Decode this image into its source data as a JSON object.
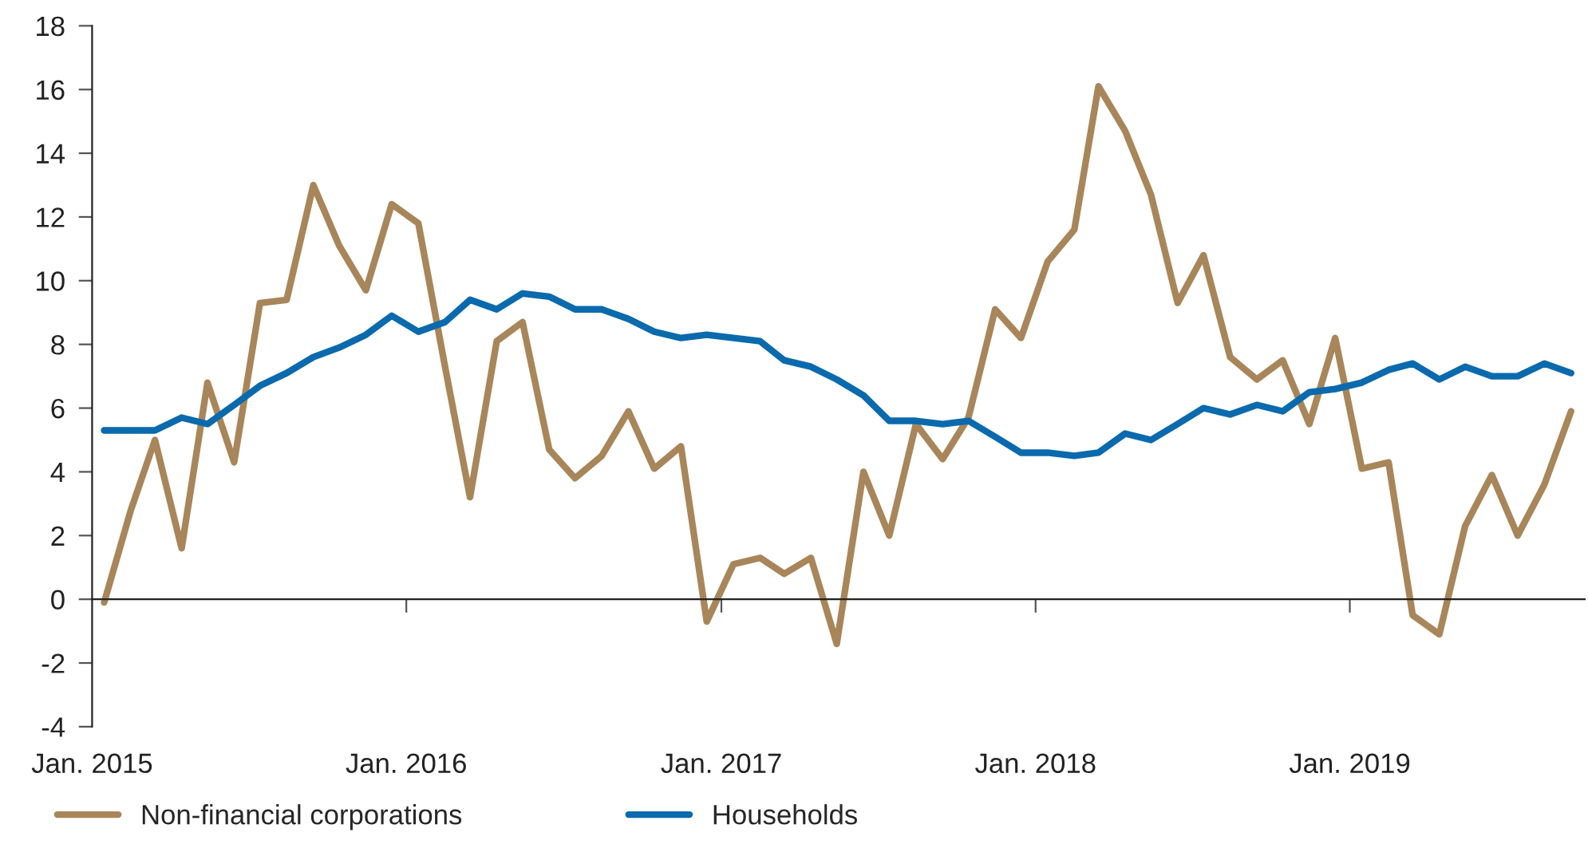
{
  "chart_data": {
    "type": "line",
    "x": [
      "2015-01-15",
      "2015-02-15",
      "2015-03-15",
      "2015-04-15",
      "2015-05-15",
      "2015-06-15",
      "2015-07-15",
      "2015-08-15",
      "2015-09-15",
      "2015-10-15",
      "2015-11-15",
      "2015-12-15",
      "2016-01-15",
      "2016-02-15",
      "2016-03-15",
      "2016-04-15",
      "2016-05-15",
      "2016-06-15",
      "2016-07-15",
      "2016-08-15",
      "2016-09-15",
      "2016-10-15",
      "2016-11-15",
      "2016-12-15",
      "2017-01-15",
      "2017-02-15",
      "2017-03-15",
      "2017-04-15",
      "2017-05-15",
      "2017-06-15",
      "2017-07-15",
      "2017-08-15",
      "2017-09-15",
      "2017-10-15",
      "2017-11-15",
      "2017-12-15",
      "2018-01-15",
      "2018-02-15",
      "2018-03-15",
      "2018-04-15",
      "2018-05-15",
      "2018-06-15",
      "2018-07-15",
      "2018-08-15",
      "2018-09-15",
      "2018-10-15",
      "2018-11-15",
      "2018-12-15",
      "2019-01-15",
      "2019-02-15",
      "2019-03-15",
      "2019-04-15",
      "2019-05-15",
      "2019-06-15",
      "2019-07-15",
      "2019-08-15",
      "2019-09-15"
    ],
    "series": [
      {
        "name": "Non-financial corporations",
        "color": "#a8865a",
        "values": [
          -0.1,
          2.8,
          5.0,
          1.6,
          6.8,
          4.3,
          9.3,
          9.4,
          13.0,
          11.1,
          9.7,
          12.4,
          11.8,
          7.3,
          3.2,
          8.1,
          8.7,
          4.7,
          3.8,
          4.5,
          5.9,
          4.1,
          4.8,
          -0.7,
          1.1,
          1.3,
          0.8,
          1.3,
          -1.4,
          4.0,
          2.0,
          5.5,
          4.4,
          5.7,
          9.1,
          8.2,
          10.6,
          11.6,
          16.1,
          14.7,
          12.7,
          9.3,
          10.8,
          7.6,
          6.9,
          7.5,
          5.5,
          8.2,
          4.1,
          4.3,
          -0.5,
          -1.1,
          2.3,
          3.9,
          2.0,
          3.6,
          5.9
        ]
      },
      {
        "name": "Households",
        "color": "#0a6aad",
        "values": [
          5.3,
          5.3,
          5.3,
          5.7,
          5.5,
          6.1,
          6.7,
          7.1,
          7.6,
          7.9,
          8.3,
          8.9,
          8.4,
          8.7,
          9.4,
          9.1,
          9.6,
          9.5,
          9.1,
          9.1,
          8.8,
          8.4,
          8.2,
          8.3,
          8.2,
          8.1,
          7.5,
          7.3,
          6.9,
          6.4,
          5.6,
          5.6,
          5.5,
          5.6,
          5.1,
          4.6,
          4.6,
          4.5,
          4.6,
          5.2,
          5.0,
          5.5,
          6.0,
          5.8,
          6.1,
          5.9,
          6.5,
          6.6,
          6.8,
          7.2,
          7.4,
          6.9,
          7.3,
          7.0,
          7.0,
          7.4,
          7.1
        ]
      }
    ],
    "xlim": [
      "2015-01-01",
      "2019-10-01"
    ],
    "xticks": [
      {
        "value": "2015-01-01",
        "label": "Jan. 2015"
      },
      {
        "value": "2016-01-01",
        "label": "Jan. 2016"
      },
      {
        "value": "2017-01-01",
        "label": "Jan. 2017"
      },
      {
        "value": "2018-01-01",
        "label": "Jan. 2018"
      },
      {
        "value": "2019-01-01",
        "label": "Jan. 2019"
      }
    ],
    "ylim": [
      -4,
      18
    ],
    "yticks": [
      {
        "value": -4,
        "label": "-4"
      },
      {
        "value": -2,
        "label": "-2"
      },
      0,
      2,
      4,
      6,
      8,
      10,
      12,
      14,
      16,
      18
    ],
    "legend": "bottom left",
    "line_style": "solid",
    "marker": "none"
  }
}
